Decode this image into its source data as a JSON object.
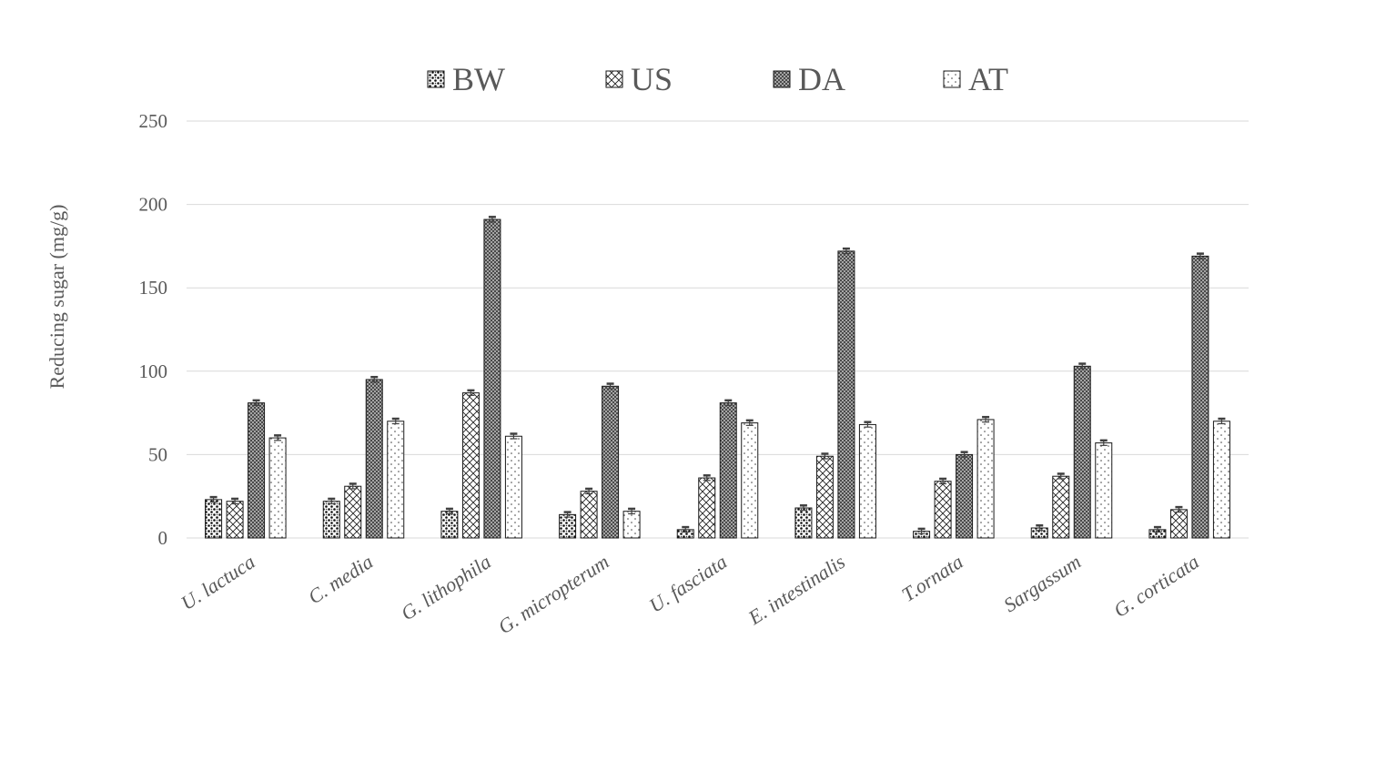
{
  "chart_data": {
    "type": "bar",
    "title": "",
    "xlabel": "",
    "ylabel": "Reducing sugar (mg/g)",
    "ylim": [
      0,
      250
    ],
    "yticks": [
      0,
      50,
      100,
      150,
      200,
      250
    ],
    "grid": true,
    "legend_position": "top",
    "categories": [
      "U. lactuca",
      "C. media",
      "G. lithophila",
      "G. micropterum",
      "U. fasciata",
      "E. intestinalis",
      "T.ornata",
      "Sargassum",
      "G. corticata"
    ],
    "series": [
      {
        "name": "BW",
        "pattern": "dots",
        "values": [
          23,
          22,
          16,
          14,
          5,
          18,
          4,
          6,
          5
        ],
        "errors": [
          1.5,
          1.5,
          1.5,
          1.5,
          1.5,
          1.5,
          1.5,
          1.5,
          1.5
        ]
      },
      {
        "name": "US",
        "pattern": "crosshatch",
        "values": [
          22,
          31,
          87,
          28,
          36,
          49,
          34,
          37,
          17
        ],
        "errors": [
          1.5,
          1.5,
          1.5,
          1.5,
          1.5,
          1.5,
          1.5,
          1.5,
          1.5
        ]
      },
      {
        "name": "DA",
        "pattern": "dense-crosshatch",
        "values": [
          81,
          95,
          191,
          91,
          81,
          172,
          50,
          103,
          169
        ],
        "errors": [
          1.5,
          1.5,
          1.5,
          1.5,
          1.5,
          1.5,
          1.5,
          1.5,
          1.5
        ]
      },
      {
        "name": "AT",
        "pattern": "light-dots",
        "values": [
          60,
          70,
          61,
          16,
          69,
          68,
          71,
          57,
          70
        ],
        "errors": [
          1.5,
          1.5,
          1.5,
          1.5,
          1.5,
          1.5,
          1.5,
          1.5,
          1.5
        ]
      }
    ],
    "colors": {
      "grid": "#d9d9d9",
      "text": "#595959",
      "bar_outline": "#1a1a1a",
      "error_bar": "#404040"
    }
  }
}
